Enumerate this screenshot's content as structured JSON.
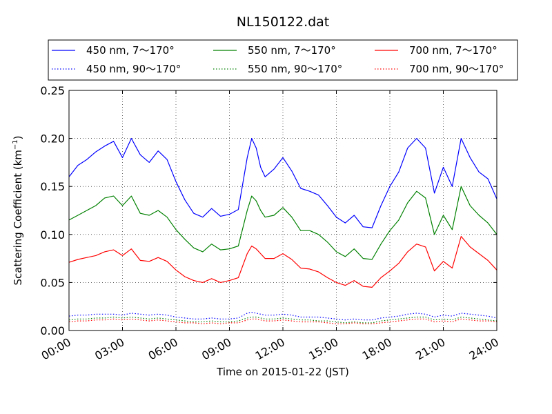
{
  "chart_data": {
    "type": "line",
    "title": "NL150122.dat",
    "xlabel": "Time on 2015-01-22 (JST)",
    "ylabel": "Scattering Coefficient (km",
    "ylabel_sup": "−1",
    "ylabel_close": ")",
    "xlim": [
      0,
      24
    ],
    "ylim": [
      0,
      0.25
    ],
    "grid": true,
    "legend_position": "top",
    "x_ticks": [
      0,
      3,
      6,
      9,
      12,
      15,
      18,
      21,
      24
    ],
    "x_tick_labels": [
      "00:00",
      "03:00",
      "06:00",
      "09:00",
      "12:00",
      "15:00",
      "18:00",
      "21:00",
      "24:00"
    ],
    "y_ticks": [
      0,
      0.05,
      0.1,
      0.15,
      0.2,
      0.25
    ],
    "y_tick_labels": [
      "0.00",
      "0.05",
      "0.10",
      "0.15",
      "0.20",
      "0.25"
    ],
    "x": [
      0,
      0.5,
      1,
      1.5,
      2,
      2.5,
      3,
      3.5,
      4,
      4.5,
      5,
      5.5,
      6,
      6.5,
      7,
      7.5,
      8,
      8.5,
      9,
      9.5,
      10,
      10.25,
      10.5,
      10.75,
      11,
      11.5,
      12,
      12.5,
      13,
      13.5,
      14,
      14.5,
      15,
      15.5,
      16,
      16.5,
      17,
      17.5,
      18,
      18.5,
      19,
      19.5,
      20,
      20.5,
      21,
      21.5,
      22,
      22.5,
      23,
      23.5,
      24
    ],
    "series": [
      {
        "name": "450 nm, 7～170°",
        "color": "#0000ff",
        "style": "solid",
        "values": [
          0.16,
          0.172,
          0.178,
          0.186,
          0.192,
          0.197,
          0.18,
          0.2,
          0.183,
          0.175,
          0.187,
          0.178,
          0.155,
          0.136,
          0.122,
          0.118,
          0.127,
          0.119,
          0.121,
          0.126,
          0.18,
          0.2,
          0.19,
          0.17,
          0.16,
          0.168,
          0.18,
          0.166,
          0.148,
          0.145,
          0.141,
          0.13,
          0.118,
          0.112,
          0.12,
          0.108,
          0.107,
          0.13,
          0.15,
          0.165,
          0.19,
          0.2,
          0.19,
          0.143,
          0.17,
          0.15,
          0.2,
          0.18,
          0.165,
          0.158,
          0.137
        ]
      },
      {
        "name": "450 nm, 90～170°",
        "color": "#0000ff",
        "style": "dotted",
        "values": [
          0.015,
          0.016,
          0.016,
          0.017,
          0.017,
          0.017,
          0.016,
          0.018,
          0.017,
          0.016,
          0.017,
          0.016,
          0.014,
          0.013,
          0.012,
          0.012,
          0.013,
          0.012,
          0.012,
          0.013,
          0.018,
          0.019,
          0.018,
          0.017,
          0.016,
          0.016,
          0.017,
          0.016,
          0.014,
          0.014,
          0.014,
          0.013,
          0.012,
          0.011,
          0.012,
          0.011,
          0.011,
          0.013,
          0.014,
          0.015,
          0.017,
          0.018,
          0.017,
          0.014,
          0.016,
          0.015,
          0.018,
          0.017,
          0.016,
          0.015,
          0.013
        ]
      },
      {
        "name": "550 nm, 7～170°",
        "color": "#008000",
        "style": "solid",
        "values": [
          0.115,
          0.12,
          0.125,
          0.13,
          0.138,
          0.14,
          0.13,
          0.14,
          0.122,
          0.12,
          0.125,
          0.118,
          0.105,
          0.095,
          0.086,
          0.082,
          0.09,
          0.084,
          0.085,
          0.088,
          0.125,
          0.14,
          0.135,
          0.125,
          0.118,
          0.12,
          0.128,
          0.118,
          0.104,
          0.104,
          0.1,
          0.092,
          0.082,
          0.077,
          0.085,
          0.075,
          0.074,
          0.09,
          0.104,
          0.115,
          0.133,
          0.145,
          0.138,
          0.1,
          0.12,
          0.105,
          0.15,
          0.13,
          0.12,
          0.112,
          0.1
        ]
      },
      {
        "name": "550 nm, 90～170°",
        "color": "#008000",
        "style": "dotted",
        "values": [
          0.011,
          0.012,
          0.012,
          0.013,
          0.013,
          0.014,
          0.013,
          0.014,
          0.013,
          0.012,
          0.013,
          0.012,
          0.011,
          0.01,
          0.009,
          0.009,
          0.01,
          0.009,
          0.009,
          0.01,
          0.013,
          0.014,
          0.014,
          0.013,
          0.012,
          0.012,
          0.013,
          0.012,
          0.011,
          0.011,
          0.01,
          0.01,
          0.009,
          0.008,
          0.009,
          0.008,
          0.008,
          0.01,
          0.011,
          0.012,
          0.013,
          0.014,
          0.014,
          0.011,
          0.012,
          0.011,
          0.014,
          0.013,
          0.012,
          0.011,
          0.01
        ]
      },
      {
        "name": "700 nm, 7～170°",
        "color": "#ff0000",
        "style": "solid",
        "values": [
          0.071,
          0.074,
          0.076,
          0.078,
          0.082,
          0.084,
          0.078,
          0.085,
          0.073,
          0.072,
          0.076,
          0.072,
          0.063,
          0.056,
          0.052,
          0.05,
          0.054,
          0.05,
          0.052,
          0.055,
          0.08,
          0.088,
          0.085,
          0.08,
          0.075,
          0.075,
          0.08,
          0.074,
          0.065,
          0.064,
          0.061,
          0.055,
          0.05,
          0.047,
          0.052,
          0.046,
          0.045,
          0.055,
          0.062,
          0.07,
          0.082,
          0.09,
          0.087,
          0.062,
          0.072,
          0.065,
          0.098,
          0.087,
          0.08,
          0.073,
          0.063
        ]
      },
      {
        "name": "700 nm, 90～170°",
        "color": "#ff0000",
        "style": "dotted",
        "values": [
          0.009,
          0.01,
          0.01,
          0.011,
          0.011,
          0.012,
          0.011,
          0.012,
          0.011,
          0.01,
          0.011,
          0.01,
          0.009,
          0.008,
          0.008,
          0.007,
          0.008,
          0.007,
          0.008,
          0.008,
          0.011,
          0.012,
          0.012,
          0.011,
          0.01,
          0.01,
          0.011,
          0.01,
          0.009,
          0.009,
          0.009,
          0.008,
          0.007,
          0.007,
          0.008,
          0.007,
          0.007,
          0.008,
          0.009,
          0.01,
          0.011,
          0.012,
          0.012,
          0.009,
          0.01,
          0.009,
          0.012,
          0.011,
          0.01,
          0.01,
          0.009
        ]
      }
    ]
  }
}
